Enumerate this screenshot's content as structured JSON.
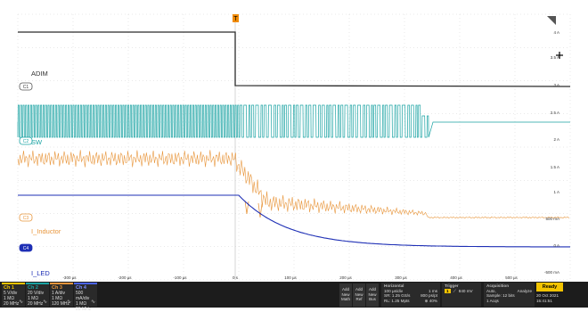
{
  "colors": {
    "ch1": "#2b2b2b",
    "ch2": "#1aa3a3",
    "ch3": "#e8963c",
    "ch4": "#1e2fb5",
    "grid": "#c8c8c8",
    "background": "#ffffff",
    "bar_background": "#1c1c1c",
    "ready": "#f3c400"
  },
  "trigger_marker": "T",
  "waveform_labels": {
    "adim": "ADIM",
    "sw": "SW",
    "inductor": "I_Inductor",
    "led": "I_LED"
  },
  "channel_markers": [
    "C1",
    "C2",
    "C3",
    "C4"
  ],
  "right_scale": {
    "labels": [
      "4 A",
      "3.5 A",
      "3 A",
      "2.5 A",
      "2 A",
      "1.5 A",
      "1 A",
      "500 mA",
      "0 A",
      "-500 mA"
    ]
  },
  "time_axis": {
    "labels": [
      "-300 µs",
      "-200 µs",
      "-100 µs",
      "0 s",
      "100 µs",
      "200 µs",
      "300 µs",
      "400 µs",
      "500 µs"
    ]
  },
  "channels": [
    {
      "name": "Ch 1",
      "scale": "5 V/div",
      "offset": "1 MΩ",
      "bw": "20 MHz"
    },
    {
      "name": "Ch 2",
      "scale": "20 V/div",
      "offset": "1 MΩ",
      "bw": "20 MHz"
    },
    {
      "name": "Ch 3",
      "scale": "1 A/div",
      "offset": "1 MΩ",
      "bw": "120 MHz"
    },
    {
      "name": "Ch 4",
      "scale": "500 mA/div",
      "offset": "1 MΩ",
      "bw": "20 MHz"
    }
  ],
  "channel_icon": "∿",
  "add_buttons": [
    {
      "line1": "Add",
      "line2": "New",
      "line3": "Math"
    },
    {
      "line1": "Add",
      "line2": "New",
      "line3": "Ref"
    },
    {
      "line1": "Add",
      "line2": "New",
      "line3": "Bus"
    }
  ],
  "horizontal": {
    "title": "Horizontal",
    "scale": "100 µs/div",
    "record": "1 ms",
    "sample": "SR: 1.25 GS/s",
    "pts": "800 ps/pt",
    "rl": "RL: 1.25 Mpts",
    "pos": "40%"
  },
  "trigger": {
    "title": "Trigger",
    "channel": "1",
    "level": "840 mV"
  },
  "acquisition": {
    "title": "Acquisition",
    "mode": "Auto,",
    "analyze": "Analyze",
    "sample": "Sample: 12 bits",
    "acqs": "1 Acqs"
  },
  "ready": "Ready",
  "date": "20 Oct 2021",
  "time": "15:41:51"
}
